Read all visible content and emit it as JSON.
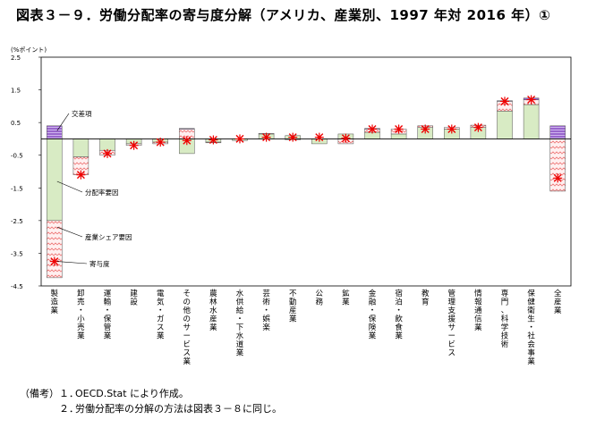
{
  "title": "図表３－９．労働分配率の寄与度分解（アメリカ、産業別、1997 年対 2016 年）①",
  "chart_data": {
    "type": "bar",
    "stacked": true,
    "y_unit": "(%ポイント)",
    "ylim": [
      -4.5,
      2.5
    ],
    "yticks": [
      "2.5",
      "1.5",
      "0.5",
      "-0.5",
      "-1.5",
      "-2.5",
      "-3.5",
      "-4.5"
    ],
    "ytick_values": [
      2.5,
      1.5,
      0.5,
      -0.5,
      -1.5,
      -2.5,
      -3.5,
      -4.5
    ],
    "categories": [
      "製造業",
      "卸売・小売業",
      "運輸・保管業",
      "建設",
      "電気・ガス業",
      "その他のサービス業",
      "農林水産業",
      "水供給・下水道業",
      "芸術・娯楽",
      "不動産業",
      "公務",
      "鉱業",
      "金融・保険業",
      "宿泊・飲食業",
      "教育",
      "管理支援サービス",
      "情報通信業",
      "専門、科学技術",
      "保健衛生・社会事業",
      "全産業"
    ],
    "series": [
      {
        "name": "交差項",
        "color": "#9966cc",
        "values": [
          0.4,
          0.0,
          0.0,
          0.0,
          0.0,
          0.02,
          0.0,
          0.0,
          0.0,
          0.0,
          0.0,
          0.0,
          0.02,
          0.0,
          0.0,
          0.0,
          0.0,
          0.02,
          0.05,
          0.4
        ]
      },
      {
        "name": "分配率要因",
        "color": "#ffb3b3",
        "values": [
          -1.75,
          -0.55,
          -0.15,
          -0.05,
          -0.05,
          0.3,
          -0.02,
          0.0,
          0.02,
          -0.03,
          0.0,
          -0.15,
          0.1,
          0.15,
          0.05,
          0.05,
          0.07,
          0.3,
          0.15,
          -1.6
        ]
      },
      {
        "name": "産業シェア要因",
        "color": "#d8ebc4",
        "values": [
          -2.5,
          -0.55,
          -0.35,
          -0.15,
          -0.1,
          -0.45,
          -0.1,
          -0.05,
          0.15,
          0.1,
          -0.15,
          0.15,
          0.2,
          0.15,
          0.35,
          0.3,
          0.35,
          0.85,
          1.05,
          0.0
        ]
      }
    ],
    "contribution": {
      "name": "寄与度",
      "color": "#ee0000",
      "values": [
        -3.75,
        -1.1,
        -0.45,
        -0.2,
        -0.1,
        -0.05,
        -0.03,
        0.0,
        0.05,
        0.05,
        0.05,
        0.02,
        0.3,
        0.3,
        0.3,
        0.3,
        0.35,
        1.15,
        1.2,
        -1.2
      ]
    },
    "annotations": [
      "交差項",
      "分配率要因",
      "産業シェア要因",
      "寄与度"
    ]
  },
  "notes": {
    "head": "（備考）",
    "items": [
      {
        "num": "１．",
        "text": "OECD.Stat により作成。"
      },
      {
        "num": "２．",
        "text": "労働分配率の分解の方法は図表３－８に同じ。"
      }
    ]
  }
}
